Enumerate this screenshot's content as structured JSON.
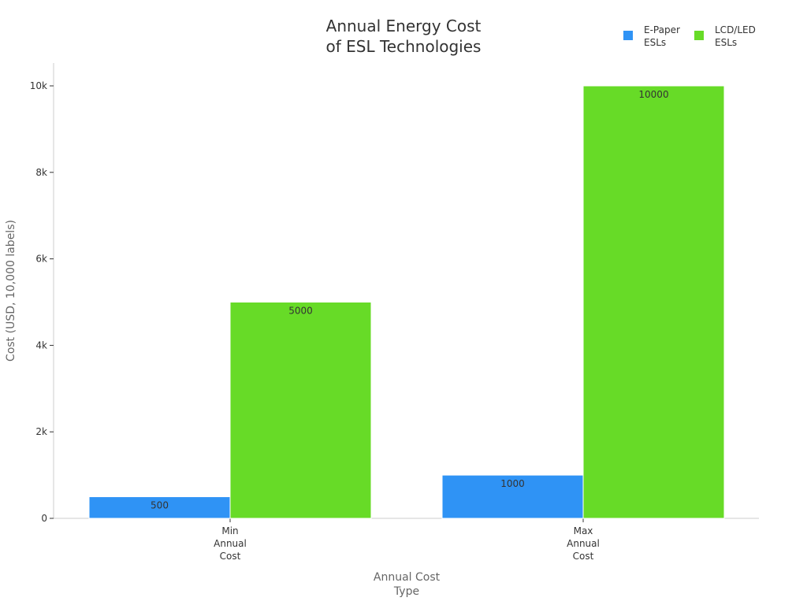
{
  "chart_data": {
    "type": "bar",
    "title": [
      "Annual Energy Cost",
      "of ESL Technologies"
    ],
    "xlabel": [
      "Annual Cost",
      "Type"
    ],
    "ylabel": "Cost (USD, 10,000 labels)",
    "categories": [
      [
        "Min",
        "Annual",
        "Cost"
      ],
      [
        "Max",
        "Annual",
        "Cost"
      ]
    ],
    "series": [
      {
        "name": [
          "E-Paper",
          "ESLs"
        ],
        "color": "#2f93f5",
        "values": [
          500,
          1000
        ]
      },
      {
        "name": [
          "LCD/LED",
          "ESLs"
        ],
        "color": "#67db27",
        "values": [
          5000,
          10000
        ]
      }
    ],
    "ylim": [
      0,
      10500
    ],
    "yticks": [
      {
        "value": 0,
        "label": "0"
      },
      {
        "value": 2000,
        "label": "2k"
      },
      {
        "value": 4000,
        "label": "4k"
      },
      {
        "value": 6000,
        "label": "6k"
      },
      {
        "value": 8000,
        "label": "8k"
      },
      {
        "value": 10000,
        "label": "10k"
      }
    ],
    "grid": false,
    "legend": "top-right",
    "data_labels": true
  }
}
